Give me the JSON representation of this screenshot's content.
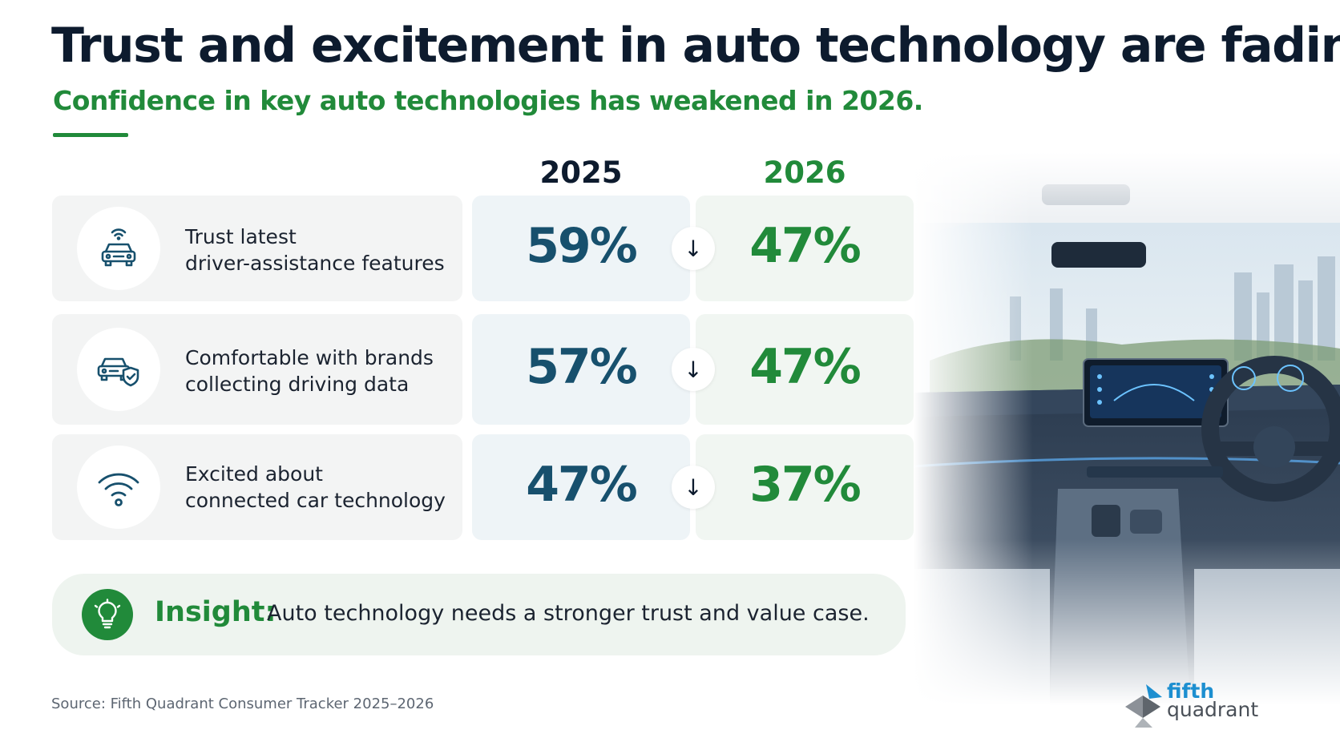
{
  "header": {
    "title": "Trust and excitement in auto technology are fading",
    "subtitle": "Confidence in key auto technologies has weakened in 2026."
  },
  "chart_data": {
    "type": "table",
    "columns": [
      "2025",
      "2026"
    ],
    "rows": [
      {
        "label": "Trust latest\ndriver-assistance features",
        "icon": "car-sensor-icon",
        "values": [
          59,
          47
        ],
        "display": [
          "59%",
          "47%"
        ],
        "trend": "down"
      },
      {
        "label": "Comfortable with brands\ncollecting driving data",
        "icon": "car-shield-icon",
        "values": [
          57,
          47
        ],
        "display": [
          "57%",
          "47%"
        ],
        "trend": "down"
      },
      {
        "label": "Excited about\nconnected car technology",
        "icon": "wifi-icon",
        "values": [
          47,
          37
        ],
        "display": [
          "47%",
          "37%"
        ],
        "trend": "down"
      }
    ],
    "arrow_glyph": "↓",
    "unit": "%"
  },
  "insight": {
    "label": "Insight:",
    "text": "Auto technology needs a stronger trust and value case.",
    "icon": "lightbulb-icon"
  },
  "footer": {
    "source": "Source: Fifth Quadrant Consumer Tracker 2025–2026",
    "logo_line1": "fifth",
    "logo_line2": "quadrant"
  },
  "colors": {
    "navy": "#0d1b2e",
    "green": "#218a3a",
    "teal": "#17506d",
    "logo_blue": "#1d8fd0"
  }
}
